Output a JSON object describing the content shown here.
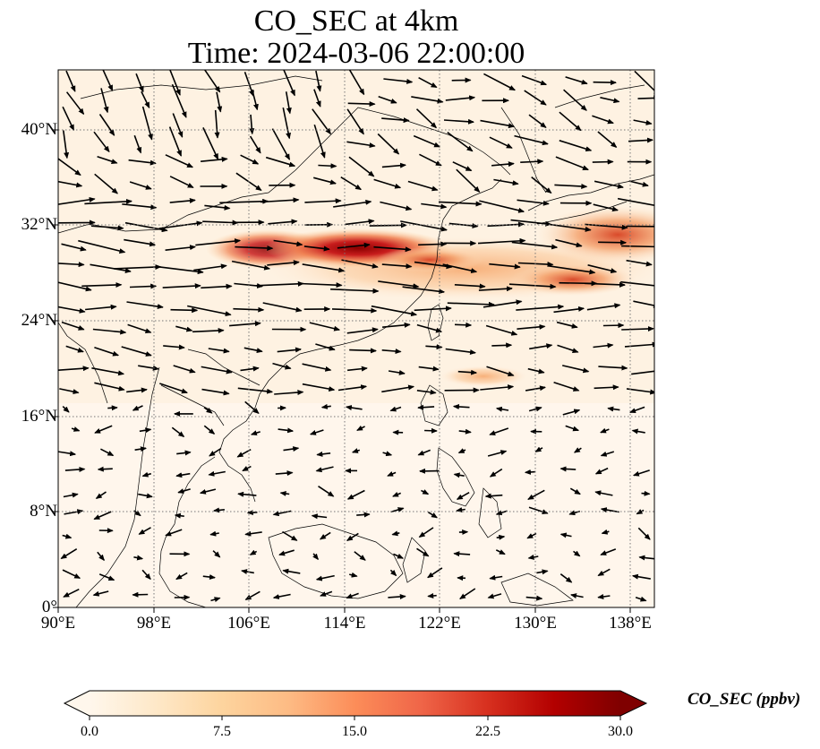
{
  "title": {
    "line1": "CO_SEC at 4km",
    "line2": "Time: 2024-03-06 22:00:00"
  },
  "map": {
    "lon_range": [
      90,
      139
    ],
    "lat_range": [
      0,
      45
    ],
    "gridlines": true,
    "xticks": [
      "90°E",
      "98°E",
      "106°E",
      "114°E",
      "122°E",
      "130°E",
      "138°E"
    ],
    "yticks": [
      "0°",
      "8°N",
      "16°N",
      "24°N",
      "32°N",
      "40°N"
    ],
    "field": "CO_SEC concentration with wind vectors",
    "colormap": "OrRd",
    "plume_peak_lon_lat": [
      114,
      30.5
    ]
  },
  "colorbar": {
    "title": "CO_SEC (ppbv)",
    "ticks": [
      "0.0",
      "7.5",
      "15.0",
      "22.5",
      "30.0"
    ],
    "extend": "both",
    "colors": [
      "#fff7ec",
      "#fee8c8",
      "#fdd49e",
      "#fdbb84",
      "#fc8d59",
      "#ef6548",
      "#d7301f",
      "#b30000",
      "#7f0000"
    ]
  }
}
